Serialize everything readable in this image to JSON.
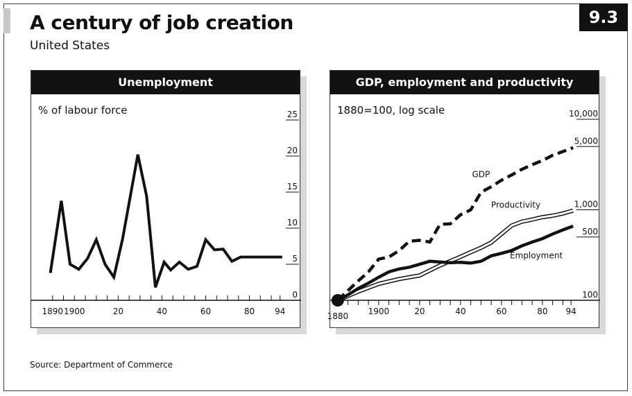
{
  "title": "A century of job creation",
  "subtitle": "United States",
  "badge": "9.3",
  "source": "Source: Department of Commerce",
  "panels": {
    "left": {
      "title": "Unemployment",
      "unit": "% of labour force"
    },
    "right": {
      "title": "GDP, employment and productivity",
      "unit": "1880=100, log scale"
    }
  },
  "chart_data": [
    {
      "type": "line",
      "title": "Unemployment",
      "ylabel": "% of labour force",
      "ylim": [
        0,
        25
      ],
      "yticks": [
        0,
        5,
        10,
        15,
        20,
        25
      ],
      "xlim": [
        1885,
        1996
      ],
      "xtick_labels": [
        {
          "value": 1890,
          "label": "1890"
        },
        {
          "value": 1900,
          "label": "1900"
        },
        {
          "value": 1920,
          "label": "20"
        },
        {
          "value": 1940,
          "label": "40"
        },
        {
          "value": 1960,
          "label": "60"
        },
        {
          "value": 1980,
          "label": "80"
        },
        {
          "value": 1994,
          "label": "94"
        }
      ],
      "x_minor_ticks": [
        1890,
        1895,
        1900,
        1905,
        1910,
        1915,
        1920,
        1925,
        1930,
        1935,
        1940,
        1945,
        1950,
        1955,
        1960,
        1965,
        1970,
        1975,
        1980,
        1985,
        1990,
        1994
      ],
      "series": [
        {
          "x": [
            1889,
            1894,
            1898,
            1902,
            1906,
            1910,
            1914,
            1918,
            1922,
            1929,
            1933,
            1937,
            1941,
            1944,
            1948,
            1952,
            1956,
            1960,
            1964,
            1968,
            1972,
            1976,
            1980,
            1984,
            1988,
            1992,
            1995
          ],
          "y": [
            3.8,
            13.8,
            5.0,
            4.3,
            5.8,
            8.4,
            5.0,
            3.2,
            8.5,
            20.2,
            14.4,
            1.8,
            5.3,
            4.2,
            5.3,
            4.3,
            4.7,
            8.4,
            7.0,
            7.1,
            5.4,
            6.0,
            6.0,
            6.0,
            6.0,
            6.0,
            6.0
          ]
        }
      ]
    },
    {
      "type": "line",
      "title": "GDP, employment and productivity",
      "ylabel": "1880=100, log scale",
      "log_scale": true,
      "ylim": [
        100,
        10000
      ],
      "yticks": [
        {
          "value": 100,
          "label": "100"
        },
        {
          "value": 500,
          "label": "500"
        },
        {
          "value": 1000,
          "label": "1,000"
        },
        {
          "value": 5000,
          "label": "5,000"
        },
        {
          "value": 10000,
          "label": "10,000"
        }
      ],
      "xlim": [
        1877,
        1997
      ],
      "xtick_labels": [
        {
          "value": 1880,
          "label": "1880"
        },
        {
          "value": 1900,
          "label": "1900"
        },
        {
          "value": 1920,
          "label": "20"
        },
        {
          "value": 1940,
          "label": "40"
        },
        {
          "value": 1960,
          "label": "60"
        },
        {
          "value": 1980,
          "label": "80"
        },
        {
          "value": 1994,
          "label": "94"
        }
      ],
      "x_minor_ticks": [
        1880,
        1885,
        1890,
        1895,
        1900,
        1905,
        1910,
        1915,
        1920,
        1925,
        1930,
        1935,
        1940,
        1945,
        1950,
        1955,
        1960,
        1965,
        1970,
        1975,
        1980,
        1985,
        1990,
        1994
      ],
      "series": [
        {
          "name": "GDP",
          "style": "dashed",
          "x": [
            1880,
            1885,
            1890,
            1895,
            1900,
            1905,
            1910,
            1915,
            1920,
            1925,
            1930,
            1935,
            1940,
            1945,
            1950,
            1955,
            1960,
            1965,
            1970,
            1975,
            1980,
            1985,
            1990,
            1995
          ],
          "y": [
            100,
            128,
            164,
            206,
            285,
            300,
            355,
            450,
            460,
            440,
            690,
            700,
            880,
            1000,
            1560,
            1800,
            2120,
            2430,
            2800,
            3150,
            3500,
            4000,
            4400,
            4850
          ]
        },
        {
          "name": "Productivity",
          "style": "outline",
          "x": [
            1880,
            1890,
            1900,
            1910,
            1920,
            1930,
            1940,
            1945,
            1950,
            1955,
            1960,
            1965,
            1970,
            1975,
            1980,
            1985,
            1990,
            1995
          ],
          "y": [
            100,
            125,
            152,
            172,
            188,
            243,
            303,
            340,
            380,
            435,
            540,
            670,
            740,
            780,
            830,
            860,
            910,
            980
          ]
        },
        {
          "name": "Employment",
          "style": "solid",
          "x": [
            1880,
            1885,
            1890,
            1895,
            1900,
            1905,
            1910,
            1915,
            1920,
            1925,
            1930,
            1935,
            1940,
            1945,
            1950,
            1955,
            1960,
            1965,
            1970,
            1975,
            1980,
            1985,
            1990,
            1995
          ],
          "y": [
            100,
            115,
            135,
            155,
            180,
            206,
            222,
            232,
            250,
            270,
            265,
            260,
            263,
            258,
            270,
            310,
            330,
            355,
            400,
            440,
            480,
            540,
            600,
            660
          ]
        }
      ]
    }
  ]
}
